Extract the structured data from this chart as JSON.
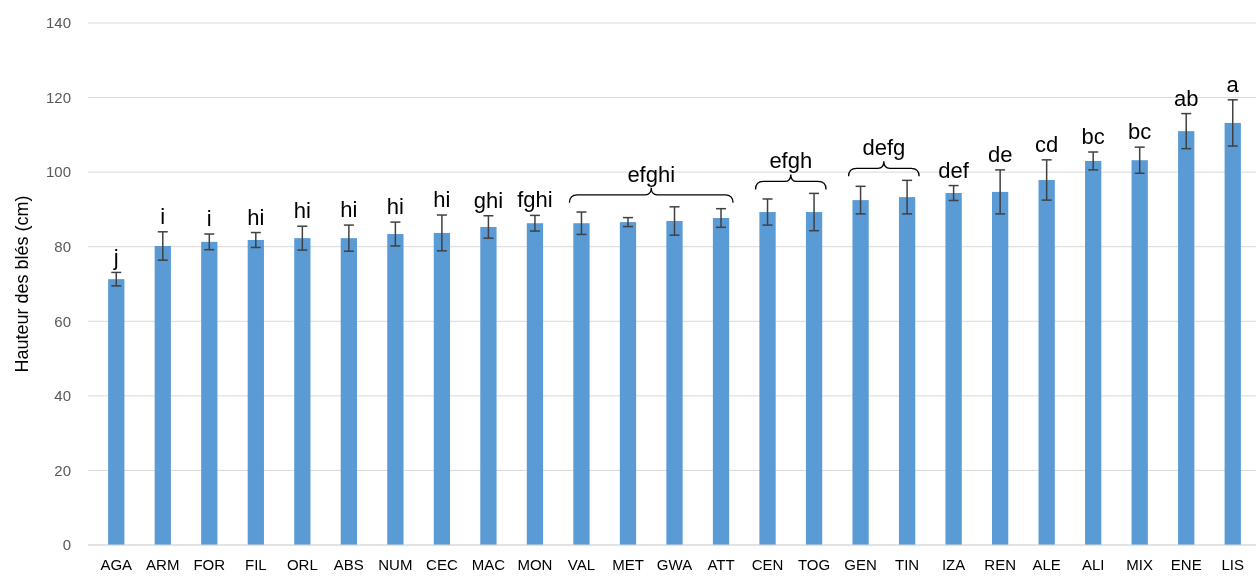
{
  "chart_data": {
    "type": "bar",
    "ylabel": "Hauteur des blés (cm)",
    "categories": [
      "AGA",
      "ARM",
      "FOR",
      "FIL",
      "ORL",
      "ABS",
      "NUM",
      "CEC",
      "MAC",
      "MON",
      "VAL",
      "MET",
      "GWA",
      "ATT",
      "CEN",
      "TOG",
      "GEN",
      "TIN",
      "IZA",
      "REN",
      "ALE",
      "ALI",
      "MIX",
      "ENE",
      "LIS"
    ],
    "values": [
      71.3,
      80.2,
      81.3,
      81.8,
      82.3,
      82.3,
      83.4,
      83.7,
      85.3,
      86.3,
      86.3,
      86.6,
      86.9,
      87.7,
      89.3,
      89.3,
      92.5,
      93.3,
      94.4,
      94.7,
      97.9,
      103,
      103.2,
      111,
      113.2
    ],
    "errors": [
      1.8,
      3.8,
      2.1,
      2,
      3.2,
      3.5,
      3.2,
      4.8,
      3,
      2.1,
      3,
      1.2,
      3.8,
      2.5,
      3.5,
      5,
      3.7,
      4.5,
      2,
      5.9,
      5.4,
      2.4,
      3.5,
      4.7,
      6.2
    ],
    "color": "#5b9bd5",
    "ylim": [
      0,
      140
    ],
    "yticks": [
      0,
      20,
      40,
      60,
      80,
      100,
      120,
      140
    ],
    "grid": "y",
    "annotations": [
      {
        "text": "j",
        "x": "AGA",
        "y": 73
      },
      {
        "text": "i",
        "x": "ARM",
        "y": 84
      },
      {
        "text": "i",
        "x": "FOR",
        "y": 83.4
      },
      {
        "text": "hi",
        "x": "FIL",
        "y": 83.8
      },
      {
        "text": "hi",
        "x": "ORL",
        "y": 85.5
      },
      {
        "text": "hi",
        "x": "ABS",
        "y": 85.8
      },
      {
        "text": "hi",
        "x": "NUM",
        "y": 86.6
      },
      {
        "text": "hi",
        "x": "CEC",
        "y": 88.5
      },
      {
        "text": "ghi",
        "x": "MAC",
        "y": 88.3
      },
      {
        "text": "fghi",
        "x": "MON",
        "y": 88.4
      },
      "efghi",
      "efgh",
      "defg",
      {
        "text": "def",
        "x": "IZA",
        "y": 96.4
      },
      {
        "text": "de",
        "x": "REN",
        "y": 100.6
      },
      {
        "text": "cd",
        "x": "ALE",
        "y": 103.3
      },
      {
        "text": "bc",
        "x": "ALI",
        "y": 105.4
      },
      {
        "text": "bc",
        "x": "MIX",
        "y": 106.7
      },
      {
        "text": "ab",
        "x": "ENE",
        "y": 115.7
      },
      {
        "text": "a",
        "x": "LIS",
        "y": 119.4
      }
    ]
  }
}
